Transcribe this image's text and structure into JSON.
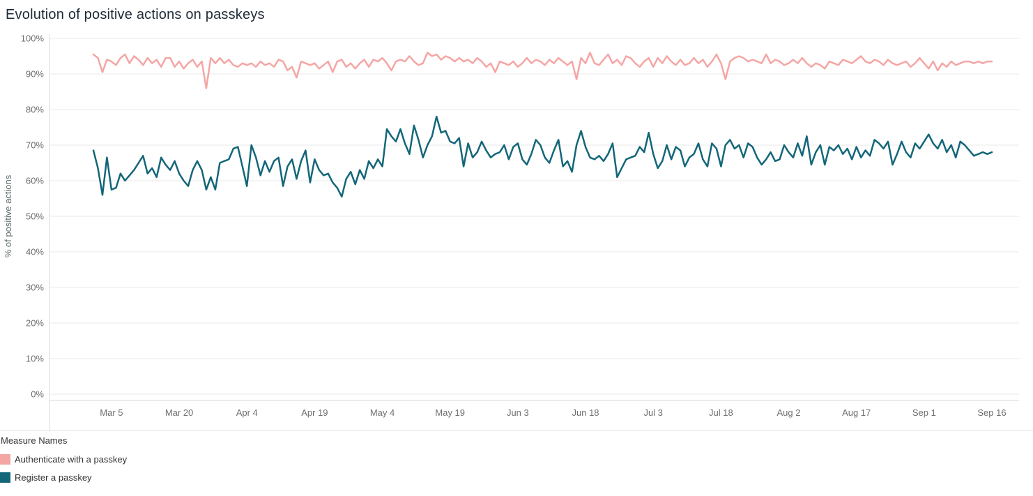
{
  "title": "Evolution of positive actions on passkeys",
  "legend": {
    "title": "Measure Names",
    "items": [
      {
        "label": "Authenticate with a passkey",
        "color": "#f4a6a4"
      },
      {
        "label": "Register a passkey",
        "color": "#136679"
      }
    ]
  },
  "chart_data": {
    "type": "line",
    "title": "Evolution of positive actions on passkeys",
    "xlabel": "",
    "ylabel": "% of positive actions",
    "ylim": [
      0,
      100
    ],
    "grid": "horizontal",
    "legend_position": "bottom-left",
    "y_ticks": [
      "0%",
      "10%",
      "20%",
      "30%",
      "40%",
      "50%",
      "60%",
      "70%",
      "80%",
      "90%",
      "100%"
    ],
    "x_range_days": [
      0,
      199
    ],
    "x_ticks": [
      {
        "label": "Mar 5",
        "day": 4
      },
      {
        "label": "Mar 20",
        "day": 19
      },
      {
        "label": "Apr 4",
        "day": 34
      },
      {
        "label": "Apr 19",
        "day": 49
      },
      {
        "label": "May 4",
        "day": 64
      },
      {
        "label": "May 19",
        "day": 79
      },
      {
        "label": "Jun 3",
        "day": 94
      },
      {
        "label": "Jun 18",
        "day": 109
      },
      {
        "label": "Jul 3",
        "day": 124
      },
      {
        "label": "Jul 18",
        "day": 139
      },
      {
        "label": "Aug 2",
        "day": 154
      },
      {
        "label": "Aug 17",
        "day": 169
      },
      {
        "label": "Sep 1",
        "day": 184
      },
      {
        "label": "Sep 16",
        "day": 199
      }
    ],
    "series": [
      {
        "name": "Authenticate with a passkey",
        "color": "#f4a6a4",
        "values": [
          95.5,
          94.5,
          90.5,
          94,
          93.5,
          92.5,
          94.5,
          95.5,
          93,
          95,
          94,
          92.5,
          94.5,
          93,
          94,
          92,
          94.5,
          94.5,
          92,
          93.5,
          91.5,
          93,
          94,
          92,
          93.5,
          86,
          94.5,
          93,
          94.5,
          93,
          94,
          92.5,
          92,
          93,
          92.5,
          93,
          92,
          93.5,
          92.5,
          93,
          92,
          94,
          93.5,
          91,
          92,
          89,
          93.5,
          93,
          92.5,
          93,
          91.5,
          92.5,
          93.5,
          90.5,
          93.5,
          94,
          92,
          93,
          91.5,
          93,
          94,
          92,
          94,
          93.5,
          94.5,
          93,
          91,
          93.5,
          94,
          93.5,
          95,
          93.5,
          92.5,
          93,
          96,
          95,
          95.5,
          94,
          95,
          94.5,
          93.5,
          94.5,
          93.5,
          94,
          93,
          94.5,
          93.5,
          92,
          93,
          90.5,
          93.5,
          93,
          92.5,
          93.5,
          92,
          93,
          94.5,
          93,
          94,
          93.5,
          92.5,
          94,
          93,
          94.5,
          93.5,
          92.5,
          93.5,
          88.5,
          94.5,
          93,
          96,
          93,
          92.5,
          94,
          95.5,
          93,
          94,
          92.5,
          95,
          94.5,
          93,
          92,
          93.5,
          94.5,
          92,
          94.5,
          93,
          95,
          93.5,
          92.5,
          94,
          92.5,
          93,
          94.5,
          93,
          94,
          92,
          93.5,
          95.5,
          93,
          88.5,
          93.5,
          94.5,
          95,
          94.5,
          93.5,
          94,
          93.5,
          93,
          95.5,
          93,
          94,
          93.5,
          92.5,
          93,
          94,
          93,
          94.5,
          93,
          92,
          93,
          92.5,
          91.5,
          93.5,
          93,
          92.5,
          94,
          93.5,
          93,
          94,
          95,
          93.5,
          93,
          94,
          93.5,
          92.5,
          94,
          93,
          92.5,
          93,
          93.5,
          92,
          93,
          94.5,
          93,
          91.5,
          93.5,
          91,
          93,
          92,
          93.5,
          92.5,
          93,
          93.5,
          93.5,
          93,
          93.5,
          93,
          93.5,
          93.5
        ]
      },
      {
        "name": "Register a passkey",
        "color": "#136679",
        "values": [
          68.5,
          63.5,
          56,
          66.5,
          57.5,
          58,
          62,
          60,
          61.5,
          63,
          65,
          67,
          62,
          63.5,
          61,
          66.5,
          64.5,
          63,
          65.5,
          62,
          60,
          58.5,
          63,
          65.5,
          63,
          57.5,
          61,
          57.5,
          65,
          65.5,
          66,
          69,
          69.5,
          64,
          58.5,
          70,
          66.5,
          61.5,
          65.5,
          62.5,
          65.5,
          66.5,
          58.5,
          64,
          66,
          60.5,
          65.5,
          68.5,
          59.5,
          66,
          63,
          61.5,
          62,
          59.5,
          58,
          55.5,
          60.5,
          62.5,
          59,
          63,
          60.5,
          65.5,
          63.5,
          66,
          64,
          74.5,
          72.5,
          71,
          74.5,
          70.5,
          67.5,
          75.5,
          71.5,
          66.5,
          70,
          72.5,
          78,
          73.5,
          74,
          71,
          70.5,
          72,
          64,
          70.5,
          66.5,
          68,
          71,
          68.5,
          66.5,
          67.5,
          68,
          70,
          66,
          69.5,
          70.5,
          66,
          64.5,
          67.5,
          71.5,
          70,
          66.5,
          65,
          68.5,
          71.5,
          64,
          65.5,
          62.5,
          70,
          74,
          69.5,
          66.5,
          66,
          67,
          65.5,
          67.5,
          70.5,
          61,
          63.5,
          66,
          66.5,
          67,
          69.5,
          68,
          73.5,
          67.5,
          63.5,
          65.5,
          70,
          66,
          69.5,
          68.5,
          64,
          66.5,
          67.5,
          70.5,
          66,
          64,
          70.5,
          69,
          64,
          70,
          71.5,
          69,
          70,
          66.5,
          70.5,
          69.5,
          66.5,
          64.5,
          66,
          68,
          65.5,
          66,
          70,
          68,
          66.5,
          70.5,
          67,
          72.5,
          64.5,
          68,
          70,
          64.5,
          69.5,
          68.5,
          70,
          67.5,
          69,
          66,
          69.5,
          66.5,
          68.5,
          67,
          71.5,
          70.5,
          69,
          71,
          64.5,
          67.5,
          71,
          68,
          66.5,
          70.5,
          69,
          71,
          73,
          70.5,
          69,
          71.5,
          68,
          70,
          66.5,
          71,
          70,
          68.5,
          67,
          67.5,
          68,
          67.5,
          68
        ]
      }
    ]
  }
}
